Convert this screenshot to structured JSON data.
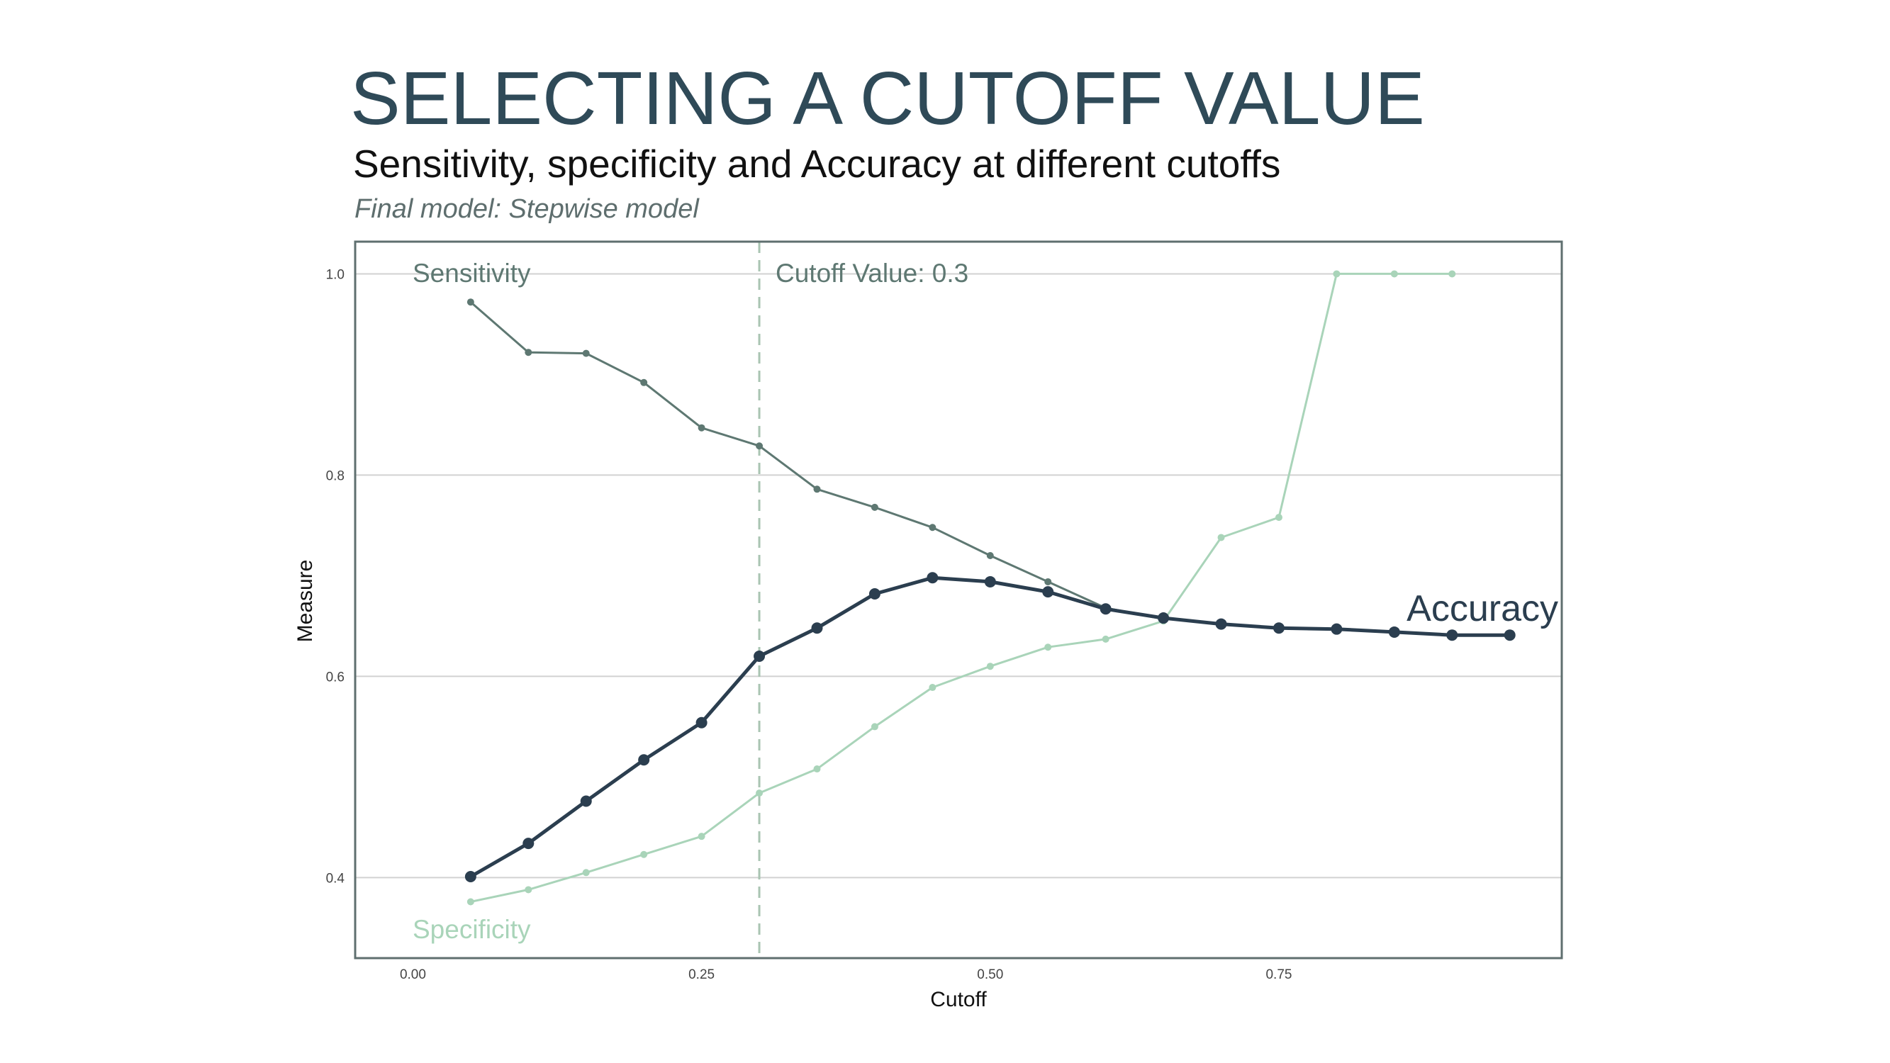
{
  "slide": {
    "title": "SELECTING A CUTOFF VALUE"
  },
  "chart_data": {
    "type": "line",
    "title": "Sensitivity, specificity and Accuracy at different cutoffs",
    "subtitle": "Final model: Stepwise model",
    "xlabel": "Cutoff",
    "ylabel": "Measure",
    "xlim": [
      -0.05,
      0.995
    ],
    "ylim": [
      0.32,
      1.032
    ],
    "x_ticks": [
      0.0,
      0.25,
      0.5,
      0.75
    ],
    "x_tick_labels": [
      "0.00",
      "0.25",
      "0.50",
      "0.75"
    ],
    "y_ticks": [
      0.4,
      0.6,
      0.8,
      1.0
    ],
    "y_tick_labels": [
      "0.4",
      "0.6",
      "0.8",
      "1.0"
    ],
    "grid": "horizontal",
    "cutoff": {
      "x": 0.3,
      "label": "Cutoff Value: 0.3",
      "color": "#a9c4b2"
    },
    "series": [
      {
        "name": "Sensitivity",
        "color": "#5e7872",
        "x": [
          0.05,
          0.1,
          0.15,
          0.2,
          0.25,
          0.3,
          0.35,
          0.4,
          0.45,
          0.5,
          0.55,
          0.6,
          0.65
        ],
        "values": [
          0.972,
          0.922,
          0.921,
          0.892,
          0.847,
          0.829,
          0.786,
          0.768,
          0.748,
          0.72,
          0.694,
          0.668,
          0.657
        ]
      },
      {
        "name": "Specificity",
        "color": "#a9d4b9",
        "x": [
          0.05,
          0.1,
          0.15,
          0.2,
          0.25,
          0.3,
          0.35,
          0.4,
          0.45,
          0.5,
          0.55,
          0.6,
          0.65,
          0.7,
          0.75,
          0.8,
          0.85,
          0.9
        ],
        "values": [
          0.376,
          0.388,
          0.405,
          0.423,
          0.441,
          0.484,
          0.508,
          0.55,
          0.589,
          0.61,
          0.629,
          0.637,
          0.655,
          0.738,
          0.758,
          1.0,
          1.0,
          1.0
        ]
      },
      {
        "name": "Accuracy",
        "color": "#2b3e4f",
        "x": [
          0.05,
          0.1,
          0.15,
          0.2,
          0.25,
          0.3,
          0.35,
          0.4,
          0.45,
          0.5,
          0.55,
          0.6,
          0.65,
          0.7,
          0.75,
          0.8,
          0.85,
          0.9,
          0.95
        ],
        "values": [
          0.401,
          0.434,
          0.476,
          0.517,
          0.554,
          0.62,
          0.648,
          0.682,
          0.698,
          0.694,
          0.684,
          0.667,
          0.658,
          0.652,
          0.648,
          0.647,
          0.644,
          0.641,
          0.641
        ]
      }
    ]
  }
}
